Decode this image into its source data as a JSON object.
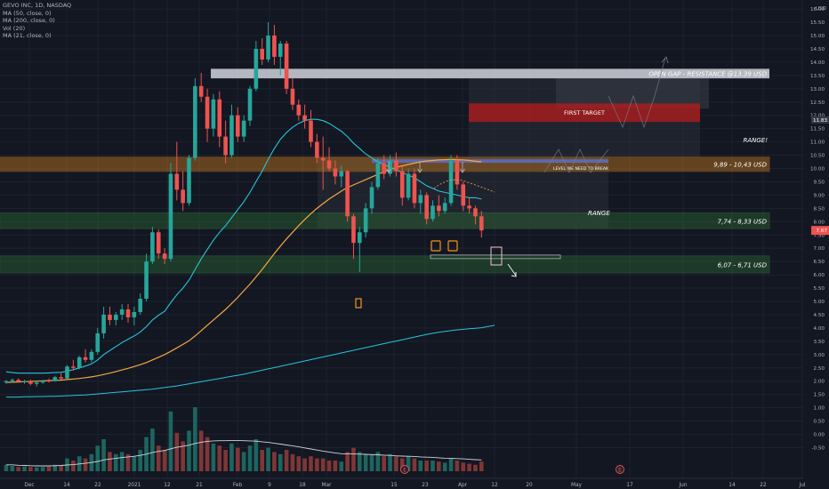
{
  "legend": {
    "title": "GEVO INC, 1D, NASDAQ",
    "lines": [
      "MA (50, close, 0)",
      "MA (200, close, 0)",
      "Vol (20)",
      "MA (21, close, 0)"
    ]
  },
  "price_axis": {
    "unit": "USD",
    "ticks": [
      "16.50",
      "16.00",
      "15.50",
      "15.00",
      "14.50",
      "14.00",
      "13.50",
      "13.00",
      "12.50",
      "12.00",
      "11.50",
      "11.00",
      "10.50",
      "10.00",
      "9.50",
      "9.00",
      "8.50",
      "8.00",
      "7.50",
      "7.00",
      "6.50",
      "6.00",
      "5.50",
      "5.00",
      "4.50",
      "4.00",
      "3.50",
      "3.00",
      "2.50",
      "2.00",
      "1.50",
      "1.00",
      "0.50",
      "0.00",
      "-0.50"
    ],
    "last_tag": "7.67",
    "ma_tag": "11.83"
  },
  "time_axis": {
    "ticks": [
      "Dec",
      "14",
      "22",
      "2021",
      "12",
      "21",
      "Feb",
      "9",
      "18",
      "Mar",
      "15",
      "23",
      "Apr",
      "12",
      "20",
      "May",
      "17",
      "Jun",
      "14",
      "22",
      "Jul"
    ]
  },
  "annotations": {
    "gap_label": "OPEN GAP - RESISTANCE @13.39 USD",
    "first_target": "FIRST TARGET",
    "range_top": "RANGE!",
    "range_mid": "RANGE",
    "break_label": "LEVEL WE NEED TO BREAK",
    "zone_high": "9,89 - 10,43 USD",
    "zone_mid": "7,74 - 8,33 USD",
    "zone_low": "6,07 - 6,71 USD",
    "earnings_marker": "E"
  },
  "colors": {
    "background": "#131722",
    "up": "#26a69a",
    "down": "#ef5350",
    "ma21": "#26c6da",
    "ma50": "#f5a742",
    "ma200": "#26c6da",
    "volume_ma": "#d1d4dc",
    "gap_zone": "#d1d4dc",
    "orange_zone": "#f7931a",
    "green_zone": "#2e7d32",
    "target_zone": "#b71c1c",
    "break_line": "#5c6bc0"
  },
  "chart_data": {
    "type": "candlestick",
    "title": "GEVO INC, 1D, NASDAQ",
    "y_unit": "USD",
    "ylim": [
      -0.7,
      16.9
    ],
    "x_categories_count": 91,
    "ohlc": [
      [
        1.95,
        2.05,
        1.9,
        2.0
      ],
      [
        2.0,
        2.1,
        1.95,
        2.05
      ],
      [
        2.05,
        2.1,
        1.95,
        1.98
      ],
      [
        1.98,
        2.05,
        1.9,
        2.0
      ],
      [
        2.0,
        2.05,
        1.85,
        1.9
      ],
      [
        1.9,
        1.98,
        1.8,
        1.95
      ],
      [
        1.95,
        2.05,
        1.9,
        2.02
      ],
      [
        2.02,
        2.1,
        1.95,
        2.0
      ],
      [
        2.0,
        2.2,
        1.98,
        2.15
      ],
      [
        2.15,
        2.3,
        2.05,
        2.1
      ],
      [
        2.1,
        2.6,
        2.1,
        2.55
      ],
      [
        2.55,
        2.8,
        2.4,
        2.5
      ],
      [
        2.5,
        2.95,
        2.45,
        2.9
      ],
      [
        2.9,
        3.2,
        2.7,
        2.8
      ],
      [
        2.8,
        3.2,
        2.7,
        3.1
      ],
      [
        3.1,
        4.0,
        3.0,
        3.8
      ],
      [
        3.8,
        4.8,
        3.6,
        4.5
      ],
      [
        4.5,
        4.8,
        4.1,
        4.3
      ],
      [
        4.3,
        4.6,
        4.1,
        4.5
      ],
      [
        4.5,
        4.9,
        4.3,
        4.7
      ],
      [
        4.7,
        4.9,
        4.2,
        4.4
      ],
      [
        4.4,
        4.8,
        4.1,
        4.6
      ],
      [
        4.6,
        5.3,
        4.5,
        5.1
      ],
      [
        5.1,
        6.8,
        5.0,
        6.5
      ],
      [
        6.5,
        7.8,
        6.4,
        7.6
      ],
      [
        7.6,
        7.7,
        6.6,
        6.8
      ],
      [
        6.8,
        7.0,
        6.4,
        6.6
      ],
      [
        6.6,
        10.2,
        6.5,
        9.8
      ],
      [
        9.8,
        11.0,
        8.8,
        9.2
      ],
      [
        9.2,
        9.9,
        8.4,
        8.7
      ],
      [
        8.7,
        10.5,
        8.6,
        10.4
      ],
      [
        10.4,
        13.4,
        10.3,
        13.1
      ],
      [
        13.1,
        13.6,
        12.5,
        12.7
      ],
      [
        12.7,
        13.0,
        11.0,
        11.5
      ],
      [
        11.5,
        12.8,
        11.2,
        12.6
      ],
      [
        12.6,
        12.9,
        10.8,
        11.2
      ],
      [
        11.2,
        11.8,
        10.2,
        10.5
      ],
      [
        10.5,
        12.4,
        10.4,
        12.0
      ],
      [
        12.0,
        12.3,
        11.0,
        11.2
      ],
      [
        11.2,
        12.0,
        11.0,
        11.8
      ],
      [
        11.8,
        13.1,
        11.6,
        13.0
      ],
      [
        13.0,
        14.8,
        12.9,
        14.5
      ],
      [
        14.5,
        14.9,
        13.9,
        14.1
      ],
      [
        14.1,
        15.5,
        14.0,
        15.0
      ],
      [
        15.0,
        15.4,
        13.9,
        14.2
      ],
      [
        14.2,
        14.8,
        13.5,
        14.7
      ],
      [
        14.7,
        14.8,
        12.8,
        13.0
      ],
      [
        13.0,
        13.4,
        12.2,
        12.4
      ],
      [
        12.4,
        12.6,
        11.8,
        12.0
      ],
      [
        12.0,
        12.4,
        11.5,
        11.8
      ],
      [
        11.8,
        12.2,
        10.8,
        11.0
      ],
      [
        11.0,
        11.3,
        10.2,
        10.4
      ],
      [
        10.4,
        11.2,
        9.2,
        10.3
      ],
      [
        10.3,
        10.8,
        9.9,
        10.0
      ],
      [
        10.0,
        10.3,
        9.4,
        9.7
      ],
      [
        9.7,
        10.1,
        9.3,
        9.9
      ],
      [
        9.9,
        9.95,
        8.0,
        8.2
      ],
      [
        8.2,
        8.3,
        6.6,
        7.2
      ],
      [
        7.2,
        7.8,
        6.1,
        7.6
      ],
      [
        7.6,
        8.7,
        7.4,
        8.5
      ],
      [
        8.5,
        9.5,
        8.3,
        9.3
      ],
      [
        9.3,
        10.4,
        9.2,
        10.2
      ],
      [
        10.2,
        10.5,
        9.6,
        9.8
      ],
      [
        9.8,
        10.5,
        9.7,
        10.3
      ],
      [
        10.3,
        10.6,
        9.7,
        9.9
      ],
      [
        9.9,
        10.1,
        8.6,
        8.9
      ],
      [
        8.9,
        10.0,
        8.8,
        9.8
      ],
      [
        9.8,
        10.0,
        8.5,
        8.7
      ],
      [
        8.7,
        9.2,
        8.3,
        9.0
      ],
      [
        9.0,
        9.1,
        7.9,
        8.1
      ],
      [
        8.1,
        8.8,
        8.0,
        8.6
      ],
      [
        8.6,
        9.0,
        8.2,
        8.4
      ],
      [
        8.4,
        8.9,
        8.3,
        8.7
      ],
      [
        8.7,
        10.5,
        8.6,
        10.3
      ],
      [
        10.3,
        10.5,
        9.2,
        9.4
      ],
      [
        9.4,
        9.5,
        8.4,
        8.6
      ],
      [
        8.6,
        8.9,
        8.3,
        8.5
      ],
      [
        8.5,
        8.6,
        7.9,
        8.2
      ],
      [
        8.2,
        8.4,
        7.4,
        7.67
      ]
    ],
    "ma21": [
      2.35,
      2.32,
      2.3,
      2.3,
      2.3,
      2.3,
      2.3,
      2.31,
      2.32,
      2.33,
      2.38,
      2.43,
      2.5,
      2.57,
      2.65,
      2.8,
      3.0,
      3.15,
      3.3,
      3.45,
      3.58,
      3.7,
      3.85,
      4.05,
      4.3,
      4.48,
      4.63,
      4.95,
      5.25,
      5.5,
      5.8,
      6.2,
      6.6,
      6.95,
      7.3,
      7.6,
      7.85,
      8.15,
      8.45,
      8.75,
      9.1,
      9.5,
      9.9,
      10.35,
      10.75,
      11.1,
      11.35,
      11.55,
      11.7,
      11.8,
      11.85,
      11.85,
      11.8,
      11.7,
      11.55,
      11.4,
      11.2,
      10.95,
      10.75,
      10.55,
      10.4,
      10.25,
      10.15,
      10.05,
      9.95,
      9.85,
      9.75,
      9.65,
      9.5,
      9.35,
      9.25,
      9.15,
      9.1,
      9.05,
      9.0,
      8.95,
      8.9,
      8.9,
      8.85
    ],
    "ma50": [
      1.95,
      1.96,
      1.97,
      1.98,
      1.99,
      2.0,
      2.01,
      2.02,
      2.03,
      2.04,
      2.06,
      2.08,
      2.1,
      2.13,
      2.16,
      2.2,
      2.25,
      2.3,
      2.36,
      2.42,
      2.48,
      2.55,
      2.62,
      2.7,
      2.8,
      2.9,
      3.0,
      3.12,
      3.25,
      3.38,
      3.52,
      3.7,
      3.9,
      4.1,
      4.3,
      4.5,
      4.7,
      4.92,
      5.15,
      5.4,
      5.65,
      5.92,
      6.2,
      6.5,
      6.8,
      7.08,
      7.35,
      7.6,
      7.85,
      8.08,
      8.3,
      8.5,
      8.68,
      8.85,
      9.0,
      9.15,
      9.28,
      9.38,
      9.48,
      9.58,
      9.68,
      9.78,
      9.88,
      9.96,
      10.04,
      10.1,
      10.15,
      10.2,
      10.25,
      10.28,
      10.3,
      10.32,
      10.33,
      10.34,
      10.33,
      10.32,
      10.3,
      10.27,
      10.25
    ],
    "ma200": [
      1.4,
      1.4,
      1.4,
      1.41,
      1.41,
      1.42,
      1.42,
      1.43,
      1.43,
      1.44,
      1.45,
      1.46,
      1.47,
      1.48,
      1.5,
      1.52,
      1.54,
      1.56,
      1.58,
      1.6,
      1.62,
      1.64,
      1.66,
      1.68,
      1.7,
      1.73,
      1.76,
      1.79,
      1.82,
      1.86,
      1.9,
      1.94,
      1.98,
      2.02,
      2.06,
      2.1,
      2.14,
      2.18,
      2.22,
      2.26,
      2.31,
      2.36,
      2.41,
      2.46,
      2.51,
      2.56,
      2.61,
      2.66,
      2.71,
      2.76,
      2.81,
      2.86,
      2.91,
      2.96,
      3.01,
      3.06,
      3.11,
      3.16,
      3.21,
      3.26,
      3.31,
      3.36,
      3.41,
      3.46,
      3.51,
      3.56,
      3.61,
      3.66,
      3.71,
      3.76,
      3.8,
      3.84,
      3.87,
      3.9,
      3.93,
      3.95,
      3.97,
      3.99,
      4.01
    ],
    "volume": [
      0.3,
      0.25,
      0.2,
      0.22,
      0.2,
      0.18,
      0.2,
      0.22,
      0.3,
      0.28,
      0.6,
      0.5,
      0.7,
      0.6,
      0.8,
      1.2,
      1.5,
      0.9,
      0.8,
      0.9,
      0.8,
      0.7,
      1.0,
      1.6,
      2.0,
      1.2,
      1.0,
      2.8,
      1.8,
      1.4,
      1.9,
      3.0,
      1.9,
      1.6,
      1.3,
      1.2,
      1.0,
      1.3,
      1.1,
      0.9,
      1.2,
      1.5,
      1.0,
      1.1,
      0.9,
      0.8,
      1.0,
      0.8,
      0.7,
      0.6,
      0.7,
      0.6,
      0.6,
      0.5,
      0.5,
      0.45,
      0.9,
      1.1,
      0.9,
      0.8,
      0.8,
      0.9,
      0.7,
      0.8,
      0.7,
      0.6,
      0.7,
      0.6,
      0.5,
      0.5,
      0.5,
      0.45,
      0.4,
      0.6,
      0.5,
      0.4,
      0.35,
      0.3,
      0.45
    ],
    "volume_ma": [
      0.3,
      0.3,
      0.28,
      0.27,
      0.26,
      0.25,
      0.25,
      0.25,
      0.26,
      0.27,
      0.29,
      0.31,
      0.34,
      0.37,
      0.41,
      0.46,
      0.53,
      0.57,
      0.6,
      0.64,
      0.67,
      0.7,
      0.74,
      0.8,
      0.88,
      0.93,
      0.97,
      1.05,
      1.12,
      1.17,
      1.22,
      1.3,
      1.36,
      1.4,
      1.42,
      1.43,
      1.43,
      1.44,
      1.44,
      1.43,
      1.42,
      1.41,
      1.38,
      1.35,
      1.31,
      1.27,
      1.23,
      1.19,
      1.14,
      1.09,
      1.04,
      0.99,
      0.94,
      0.9,
      0.86,
      0.82,
      0.81,
      0.81,
      0.8,
      0.79,
      0.78,
      0.77,
      0.75,
      0.74,
      0.72,
      0.71,
      0.7,
      0.69,
      0.67,
      0.66,
      0.65,
      0.63,
      0.61,
      0.6,
      0.59,
      0.58,
      0.56,
      0.54,
      0.53
    ],
    "zones": [
      {
        "label": "OPEN GAP - RESISTANCE @13.39 USD",
        "low": 13.39,
        "high": 13.75
      },
      {
        "label": "9,89 - 10,43 USD",
        "low": 9.89,
        "high": 10.43
      },
      {
        "label": "7,74 - 8,33 USD",
        "low": 7.74,
        "high": 8.33
      },
      {
        "label": "6,07 - 6,71 USD",
        "low": 6.07,
        "high": 6.71
      }
    ],
    "first_target": {
      "label": "FIRST TARGET",
      "low": 11.75,
      "high": 12.45
    },
    "break_level": {
      "label": "LEVEL WE NEED TO BREAK",
      "value": 10.28
    }
  }
}
